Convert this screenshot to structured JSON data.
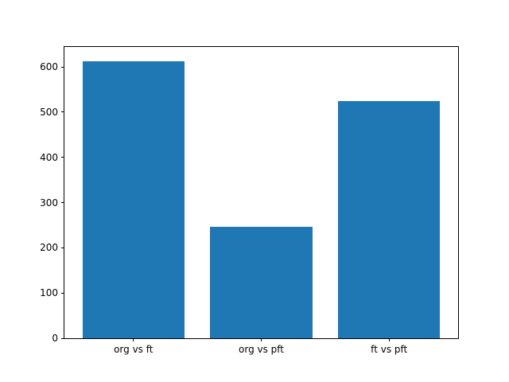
{
  "figure": {
    "background_color": "#ffffff",
    "spine_color": "#000000",
    "tick_color": "#000000",
    "label_color": "#000000"
  },
  "chart_data": {
    "type": "bar",
    "title": "",
    "xlabel": "",
    "ylabel": "",
    "categories": [
      "org vs ft",
      "org vs pft",
      "ft vs pft"
    ],
    "values": [
      613,
      247,
      524
    ],
    "bar_color": "#1f77b4",
    "bar_width": 0.8,
    "xlim": [
      -0.54,
      2.54
    ],
    "ylim": [
      0,
      644
    ],
    "yticks": [
      0,
      100,
      200,
      300,
      400,
      500,
      600
    ],
    "grid": false,
    "legend": null
  }
}
